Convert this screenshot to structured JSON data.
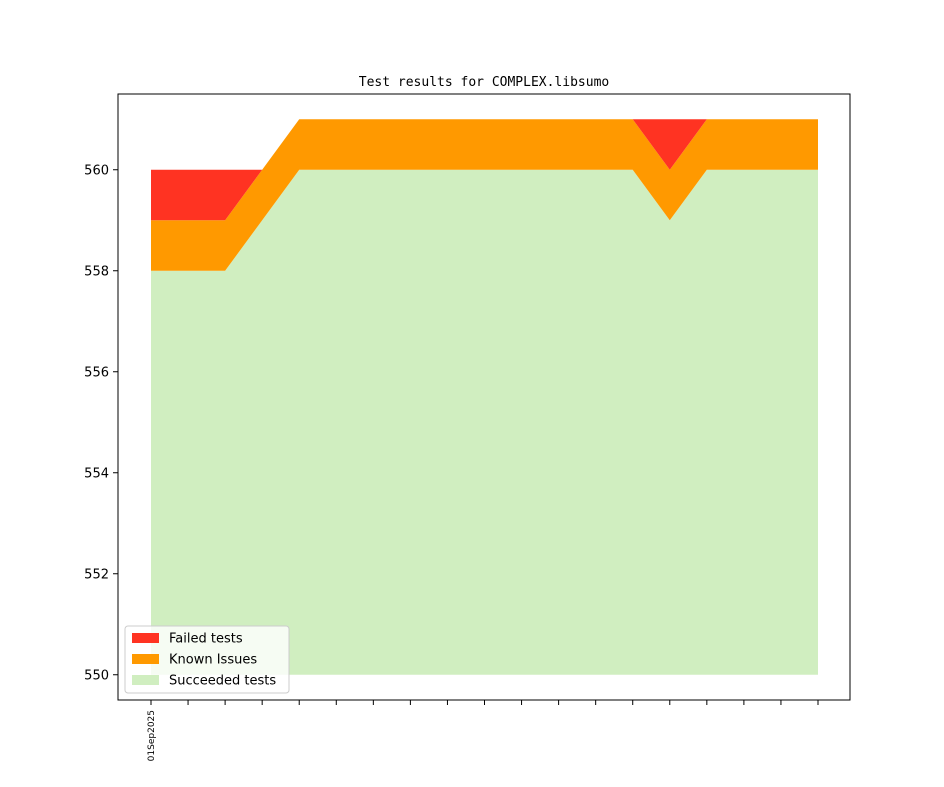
{
  "chart_data": {
    "type": "area",
    "stacked": true,
    "title": "Test results for COMPLEX.libsumo",
    "xlabel": "",
    "ylabel": "",
    "ylim": [
      549.5,
      561.5
    ],
    "yticks": [
      550,
      552,
      554,
      556,
      558,
      560
    ],
    "x_tick_labels": [
      "01Sep2025"
    ],
    "baseline": 550,
    "x": [
      0,
      1,
      2,
      3,
      4,
      5,
      6,
      7,
      8,
      9,
      10,
      11,
      12,
      13,
      14,
      15,
      16,
      17,
      18
    ],
    "series": [
      {
        "name": "Succeeded tests",
        "color": "#d0eec0",
        "top": [
          558,
          558,
          558,
          559,
          560,
          560,
          560,
          560,
          560,
          560,
          560,
          560,
          560,
          560,
          559,
          560,
          560,
          560,
          560
        ]
      },
      {
        "name": "Known Issues",
        "color": "#ff9900",
        "top": [
          559,
          559,
          559,
          560,
          561,
          561,
          561,
          561,
          561,
          561,
          561,
          561,
          561,
          561,
          560,
          561,
          561,
          561,
          561
        ]
      },
      {
        "name": "Failed tests",
        "color": "#ff3322",
        "top": [
          560,
          560,
          560,
          560,
          561,
          561,
          561,
          561,
          561,
          561,
          561,
          561,
          561,
          561,
          561,
          561,
          561,
          561,
          561
        ]
      }
    ],
    "legend": {
      "placement": "lower-left",
      "entries": [
        "Failed tests",
        "Known Issues",
        "Succeeded tests"
      ]
    },
    "grid": false
  }
}
